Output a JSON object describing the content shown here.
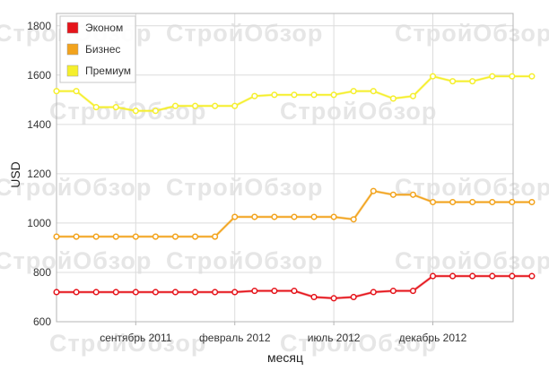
{
  "chart_data": {
    "type": "line",
    "xlabel": "месяц",
    "ylabel": "USD",
    "ylim": [
      600,
      1850
    ],
    "yticks": [
      600,
      800,
      1000,
      1200,
      1400,
      1600,
      1800
    ],
    "x": [
      0,
      1,
      2,
      3,
      4,
      5,
      6,
      7,
      8,
      9,
      10,
      11,
      12,
      13,
      14,
      15,
      16,
      17,
      18,
      19,
      20,
      21,
      22,
      23,
      24
    ],
    "x_tick_labels": [
      {
        "x": 4,
        "label": "сентябрь 2011"
      },
      {
        "x": 9,
        "label": "февраль 2012"
      },
      {
        "x": 14,
        "label": "июль 2012"
      },
      {
        "x": 19,
        "label": "декабрь 2012"
      }
    ],
    "grid": true,
    "legend_position": "top-left",
    "watermark": "СтройОбзор",
    "series": [
      {
        "name": "Эконом",
        "color": "#e5141b",
        "values": [
          720,
          720,
          720,
          720,
          720,
          720,
          720,
          720,
          720,
          720,
          725,
          725,
          725,
          700,
          695,
          700,
          720,
          725,
          725,
          785,
          785,
          785,
          785,
          785,
          785
        ]
      },
      {
        "name": "Бизнес",
        "color": "#f2a31d",
        "values": [
          945,
          945,
          945,
          945,
          945,
          945,
          945,
          945,
          945,
          1025,
          1025,
          1025,
          1025,
          1025,
          1025,
          1015,
          1130,
          1115,
          1115,
          1085,
          1085,
          1085,
          1085,
          1085,
          1085
        ]
      },
      {
        "name": "Премиум",
        "color": "#f5ef2c",
        "values": [
          1535,
          1535,
          1470,
          1470,
          1455,
          1455,
          1475,
          1475,
          1475,
          1475,
          1515,
          1520,
          1520,
          1520,
          1520,
          1535,
          1535,
          1505,
          1515,
          1595,
          1575,
          1575,
          1595,
          1595,
          1595
        ]
      }
    ]
  }
}
